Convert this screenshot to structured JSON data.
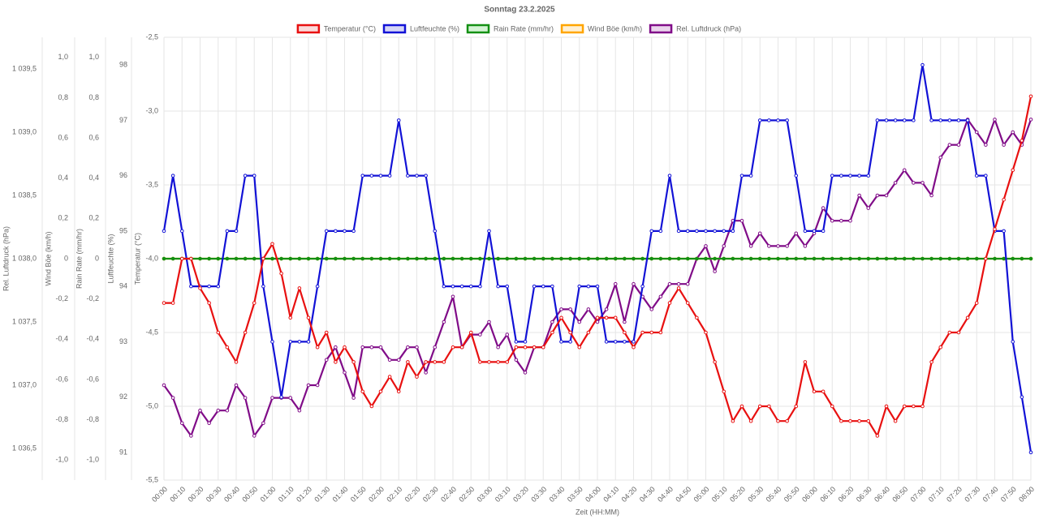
{
  "chart_data": {
    "type": "line",
    "title": "Sonntag 23.2.2025",
    "xlabel": "Zeit (HH:MM)",
    "ylabel": "Temperatur (°C)",
    "y2label": "Luftfeuchte (%)",
    "y3label": "Rain Rate (mm/hr)",
    "y4label": "Wind Böe (km/h)",
    "y5label": "Rel. Luftdruck (hPa)",
    "legend": "top",
    "grid": true,
    "categories": [
      "00:00",
      null,
      "00:10",
      null,
      "00:20",
      null,
      "00:30",
      null,
      "00:40",
      null,
      "00:50",
      null,
      "01:00",
      null,
      "01:10",
      null,
      "01:20",
      null,
      "01:30",
      null,
      "01:40",
      null,
      "01:50",
      null,
      "02:00",
      null,
      "02:10",
      null,
      "02:20",
      null,
      "02:30",
      null,
      "02:40",
      null,
      "02:50",
      null,
      "03:00",
      null,
      "03:10",
      null,
      "03:20",
      null,
      "03:30",
      null,
      "03:40",
      null,
      "03:50",
      null,
      "04:00",
      null,
      "04:10",
      null,
      "04:20",
      null,
      "04:30",
      null,
      "04:40",
      null,
      "04:50",
      null,
      "05:00",
      null,
      "05:10",
      null,
      "05:20",
      null,
      "05:30",
      null,
      "05:40",
      null,
      "05:50",
      null,
      "06:00",
      null,
      "06:10",
      null,
      "06:20",
      null,
      "06:30",
      null,
      "06:40",
      null,
      "06:50",
      null,
      "07:00",
      null,
      "07:10",
      null,
      "07:20",
      null,
      "07:30",
      null,
      "07:40",
      null,
      "07:50",
      null,
      "08:00"
    ],
    "ylim": [
      -5.5,
      -2.5
    ],
    "yticks": [
      {
        "value": -2.5,
        "label": "-2,5"
      },
      {
        "value": -3.0,
        "label": "-3,0"
      },
      {
        "value": -3.5,
        "label": "-3,5"
      },
      {
        "value": -4.0,
        "label": "-4,0"
      },
      {
        "value": -4.5,
        "label": "-4,5"
      },
      {
        "value": -5.0,
        "label": "-5,0"
      },
      {
        "value": -5.5,
        "label": "-5,5"
      }
    ],
    "y2lim": [
      90.5,
      98.5
    ],
    "y2ticks": [
      98,
      97,
      96,
      95,
      94,
      93,
      92,
      91
    ],
    "y3lim": [
      -1.1,
      1.1
    ],
    "y3ticks": [
      {
        "value": 1.0,
        "label": "1,0"
      },
      {
        "value": 0.8,
        "label": "0,8"
      },
      {
        "value": 0.6,
        "label": "0,6"
      },
      {
        "value": 0.4,
        "label": "0,4"
      },
      {
        "value": 0.2,
        "label": "0,2"
      },
      0,
      {
        "value": -0.2,
        "label": "-0,2"
      },
      {
        "value": -0.4,
        "label": "-0,4"
      },
      {
        "value": -0.6,
        "label": "-0,6"
      },
      {
        "value": -0.8,
        "label": "-0,8"
      },
      {
        "value": -1.0,
        "label": "-1,0"
      }
    ],
    "y4lim": [
      -1.1,
      1.1
    ],
    "y4ticks": [
      {
        "value": 1.0,
        "label": "1,0"
      },
      {
        "value": 0.8,
        "label": "0,8"
      },
      {
        "value": 0.6,
        "label": "0,6"
      },
      {
        "value": 0.4,
        "label": "0,4"
      },
      {
        "value": 0.2,
        "label": "0,2"
      },
      0,
      {
        "value": -0.2,
        "label": "-0,2"
      },
      {
        "value": -0.4,
        "label": "-0,4"
      },
      {
        "value": -0.6,
        "label": "-0,6"
      },
      {
        "value": -0.8,
        "label": "-0,8"
      },
      {
        "value": -1.0,
        "label": "-1,0"
      }
    ],
    "y5lim": [
      1036.25,
      1039.75
    ],
    "y5ticks": [
      {
        "value": 1039.5,
        "label": "1 039,5"
      },
      {
        "value": 1039.0,
        "label": "1 039,0"
      },
      {
        "value": 1038.5,
        "label": "1 038,5"
      },
      {
        "value": 1038.0,
        "label": "1 038,0"
      },
      {
        "value": 1037.5,
        "label": "1 037,5"
      },
      {
        "value": 1037.0,
        "label": "1 037,0"
      },
      {
        "value": 1036.5,
        "label": "1 036,5"
      }
    ],
    "series": [
      {
        "name": "Temperatur (°C)",
        "color": "#e81010",
        "fill": "#fadada",
        "axis": "y",
        "values": [
          -4.3,
          -4.3,
          -4.0,
          -4.0,
          -4.2,
          -4.3,
          -4.5,
          -4.6,
          -4.7,
          -4.5,
          -4.3,
          -4.0,
          -3.9,
          -4.1,
          -4.4,
          -4.2,
          -4.4,
          -4.6,
          -4.5,
          -4.7,
          -4.6,
          -4.7,
          -4.9,
          -5.0,
          -4.9,
          -4.8,
          -4.9,
          -4.7,
          -4.8,
          -4.7,
          -4.7,
          -4.7,
          -4.6,
          -4.6,
          -4.5,
          -4.7,
          -4.7,
          -4.7,
          -4.7,
          -4.6,
          -4.6,
          -4.6,
          -4.6,
          -4.5,
          -4.4,
          -4.5,
          -4.6,
          -4.5,
          -4.4,
          -4.4,
          -4.4,
          -4.5,
          -4.6,
          -4.5,
          -4.5,
          -4.5,
          -4.3,
          -4.2,
          -4.3,
          -4.4,
          -4.5,
          -4.7,
          -4.9,
          -5.1,
          -5.0,
          -5.1,
          -5.0,
          -5.0,
          -5.1,
          -5.1,
          -5.0,
          -4.7,
          -4.9,
          -4.9,
          -5.0,
          -5.1,
          -5.1,
          -5.1,
          -5.1,
          -5.2,
          -5.0,
          -5.1,
          -5.0,
          -5.0,
          -5.0,
          -4.7,
          -4.6,
          -4.5,
          -4.5,
          -4.4,
          -4.3,
          -4.0,
          -3.8,
          -3.6,
          -3.4,
          -3.2,
          -2.9
        ]
      },
      {
        "name": "Luftfeuchte (%)",
        "color": "#1212d6",
        "fill": "#d6d6f6",
        "axis": "y2",
        "values": [
          95,
          96,
          95,
          94,
          94,
          94,
          94,
          95,
          95,
          96,
          96,
          94,
          93,
          92,
          93,
          93,
          93,
          94,
          95,
          95,
          95,
          95,
          96,
          96,
          96,
          96,
          97,
          96,
          96,
          96,
          95,
          94,
          94,
          94,
          94,
          94,
          95,
          94,
          94,
          93,
          93,
          94,
          94,
          94,
          93,
          93,
          94,
          94,
          94,
          93,
          93,
          93,
          93,
          94,
          95,
          95,
          96,
          95,
          95,
          95,
          95,
          95,
          95,
          95,
          96,
          96,
          97,
          97,
          97,
          97,
          96,
          95,
          95,
          95,
          96,
          96,
          96,
          96,
          96,
          97,
          97,
          97,
          97,
          97,
          98,
          97,
          97,
          97,
          97,
          97,
          96,
          96,
          95,
          95,
          93,
          92,
          91
        ]
      },
      {
        "name": "Rain Rate (mm/hr)",
        "color": "#139013",
        "fill": "#d4f4d4",
        "axis": "y3",
        "values": [
          0,
          0,
          0,
          0,
          0,
          0,
          0,
          0,
          0,
          0,
          0,
          0,
          0,
          0,
          0,
          0,
          0,
          0,
          0,
          0,
          0,
          0,
          0,
          0,
          0,
          0,
          0,
          0,
          0,
          0,
          0,
          0,
          0,
          0,
          0,
          0,
          0,
          0,
          0,
          0,
          0,
          0,
          0,
          0,
          0,
          0,
          0,
          0,
          0,
          0,
          0,
          0,
          0,
          0,
          0,
          0,
          0,
          0,
          0,
          0,
          0,
          0,
          0,
          0,
          0,
          0,
          0,
          0,
          0,
          0,
          0,
          0,
          0,
          0,
          0,
          0,
          0,
          0,
          0,
          0,
          0,
          0,
          0,
          0,
          0,
          0,
          0,
          0,
          0,
          0,
          0,
          0,
          0,
          0,
          0,
          0,
          0
        ]
      },
      {
        "name": "Wind Böe (km/h)",
        "color": "#ffa500",
        "fill": "#fff0d4",
        "axis": "y4",
        "values": [
          0,
          0,
          0,
          0,
          0,
          0,
          0,
          0,
          0,
          0,
          0,
          0,
          0,
          0,
          0,
          0,
          0,
          0,
          0,
          0,
          0,
          0,
          0,
          0,
          0,
          0,
          0,
          0,
          0,
          0,
          0,
          0,
          0,
          0,
          0,
          0,
          0,
          0,
          0,
          0,
          0,
          0,
          0,
          0,
          0,
          0,
          0,
          0,
          0,
          0,
          0,
          0,
          0,
          0,
          0,
          0,
          0,
          0,
          0,
          0,
          0,
          0,
          0,
          0,
          0,
          0,
          0,
          0,
          0,
          0,
          0,
          0,
          0,
          0,
          0,
          0,
          0,
          0,
          0,
          0,
          0,
          0,
          0,
          0,
          0,
          0,
          0,
          0,
          0,
          0,
          0,
          0,
          0,
          0,
          0,
          0,
          0
        ]
      },
      {
        "name": "Rel. Luftdruck (hPa)",
        "color": "#800c88",
        "fill": "#ead4ec",
        "axis": "y5",
        "values": [
          1037.0,
          1036.9,
          1036.7,
          1036.6,
          1036.8,
          1036.7,
          1036.8,
          1036.8,
          1037.0,
          1036.9,
          1036.6,
          1036.7,
          1036.9,
          1036.9,
          1036.9,
          1036.8,
          1037.0,
          1037.0,
          1037.2,
          1037.3,
          1037.1,
          1036.9,
          1037.3,
          1037.3,
          1037.3,
          1037.2,
          1037.2,
          1037.3,
          1037.3,
          1037.1,
          1037.3,
          1037.5,
          1037.7,
          1037.3,
          1037.4,
          1037.4,
          1037.5,
          1037.3,
          1037.4,
          1037.2,
          1037.1,
          1037.3,
          1037.3,
          1037.5,
          1037.6,
          1037.6,
          1037.5,
          1037.6,
          1037.5,
          1037.6,
          1037.8,
          1037.5,
          1037.8,
          1037.7,
          1037.6,
          1037.7,
          1037.8,
          1037.8,
          1037.8,
          1038.0,
          1038.1,
          1037.9,
          1038.1,
          1038.3,
          1038.3,
          1038.1,
          1038.2,
          1038.1,
          1038.1,
          1038.1,
          1038.2,
          1038.1,
          1038.2,
          1038.4,
          1038.3,
          1038.3,
          1038.3,
          1038.5,
          1038.4,
          1038.5,
          1038.5,
          1038.6,
          1038.7,
          1038.6,
          1038.6,
          1038.5,
          1038.8,
          1038.9,
          1038.9,
          1039.1,
          1039.0,
          1038.9,
          1039.1,
          1038.9,
          1039.0,
          1038.9,
          1039.1
        ]
      }
    ]
  }
}
